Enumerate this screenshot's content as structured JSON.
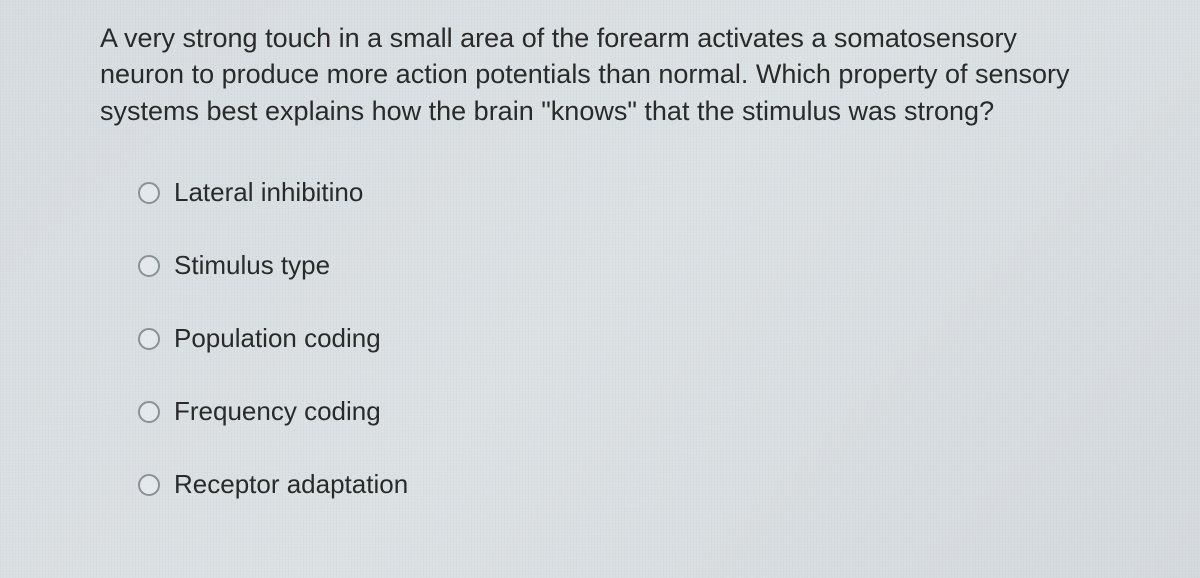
{
  "question": {
    "text": "A very strong touch in a small area of the forearm activates a somatosensory neuron to produce more action potentials than normal. Which property of sensory systems best explains how the brain \"knows\" that the stimulus was strong?",
    "text_color": "#2a2a2a",
    "font_size": 27
  },
  "options": [
    {
      "label": "Lateral inhibitino",
      "selected": false
    },
    {
      "label": "Stimulus type",
      "selected": false
    },
    {
      "label": "Population coding",
      "selected": false
    },
    {
      "label": "Frequency coding",
      "selected": false
    },
    {
      "label": "Receptor adaptation",
      "selected": false
    }
  ],
  "styling": {
    "background_color": "#dbe0e3",
    "radio_border_color": "#8a9298",
    "radio_size": 22,
    "option_font_size": 26,
    "option_gap": 42
  }
}
